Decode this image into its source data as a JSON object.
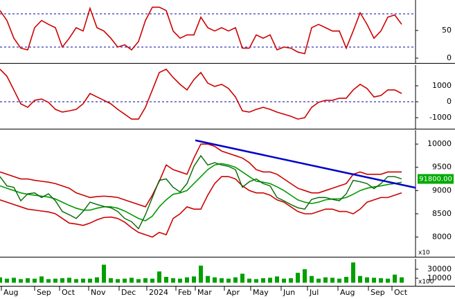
{
  "chart_data": [
    {
      "type": "line",
      "ylim": [
        -7.5,
        105
      ],
      "yticks": [
        0,
        50
      ],
      "levels": [
        20,
        80
      ],
      "level_color": "#0000aa",
      "xlim": [
        0,
        300
      ],
      "x": [
        0,
        5,
        10,
        15,
        20,
        25,
        30,
        35,
        40,
        45,
        50,
        55,
        60,
        65,
        70,
        75,
        80,
        85,
        90,
        95,
        100,
        105,
        110,
        115,
        120,
        125,
        130,
        135,
        140,
        145,
        150,
        155,
        160,
        165,
        170,
        175,
        180,
        185,
        190,
        195,
        200,
        205,
        210,
        215,
        220,
        225,
        230,
        235,
        240,
        245,
        250,
        255,
        260,
        265,
        270,
        275,
        280,
        285,
        290
      ],
      "series": [
        {
          "color": "#cc0000",
          "values": [
            86,
            68,
            36,
            18,
            15,
            55,
            68,
            61,
            55,
            20,
            36,
            55,
            49,
            90,
            55,
            49,
            36,
            20,
            24,
            15,
            30,
            68,
            92,
            92,
            86,
            49,
            36,
            42,
            42,
            74,
            55,
            49,
            55,
            49,
            55,
            18,
            18,
            42,
            36,
            42,
            15,
            20,
            18,
            11,
            8,
            55,
            61,
            55,
            49,
            49,
            18,
            49,
            82,
            61,
            36,
            49,
            74,
            78,
            61
          ]
        }
      ]
    },
    {
      "type": "line",
      "ylim": [
        -1650,
        2300
      ],
      "yticks": [
        -1000,
        0,
        1000
      ],
      "levels": [
        0
      ],
      "level_color": "#0000aa",
      "xlim": [
        0,
        300
      ],
      "x": [
        0,
        5,
        10,
        15,
        20,
        25,
        30,
        35,
        40,
        45,
        50,
        55,
        60,
        65,
        70,
        75,
        80,
        85,
        90,
        95,
        100,
        105,
        110,
        115,
        120,
        125,
        130,
        135,
        140,
        145,
        150,
        155,
        160,
        165,
        170,
        175,
        180,
        185,
        190,
        195,
        200,
        205,
        210,
        215,
        220,
        225,
        230,
        235,
        240,
        245,
        250,
        255,
        260,
        265,
        270,
        275,
        280,
        285,
        290
      ],
      "series": [
        {
          "color": "#cc0000",
          "values": [
            2040,
            1600,
            740,
            -130,
            -350,
            90,
            170,
            -40,
            -480,
            -650,
            -570,
            -480,
            -130,
            520,
            300,
            90,
            -130,
            -480,
            -780,
            -1090,
            -1090,
            -350,
            740,
            1830,
            2040,
            1520,
            1090,
            740,
            1390,
            1830,
            1170,
            960,
            1090,
            830,
            300,
            -570,
            -650,
            -480,
            -350,
            -480,
            -650,
            -780,
            -910,
            -1090,
            -1000,
            -350,
            -40,
            90,
            90,
            220,
            220,
            740,
            1090,
            830,
            300,
            390,
            740,
            740,
            520
          ]
        }
      ]
    },
    {
      "type": "line",
      "ylim": [
        7590,
        10300
      ],
      "yticks": [
        8000,
        8500,
        9000,
        9500,
        10000
      ],
      "xlim": [
        0,
        300
      ],
      "axis_unit": "x10",
      "last_price_label": "91800.00",
      "x": [
        0,
        5,
        10,
        15,
        20,
        25,
        30,
        35,
        40,
        45,
        50,
        55,
        60,
        65,
        70,
        75,
        80,
        85,
        90,
        95,
        100,
        105,
        110,
        115,
        120,
        125,
        130,
        135,
        140,
        145,
        150,
        155,
        160,
        165,
        170,
        175,
        180,
        185,
        190,
        195,
        200,
        205,
        210,
        215,
        220,
        225,
        230,
        235,
        240,
        245,
        250,
        255,
        260,
        265,
        270,
        275,
        280,
        285,
        290
      ],
      "series": [
        {
          "color": "#cc0000",
          "values": [
            9400,
            9350,
            9300,
            9250,
            9250,
            9220,
            9200,
            9180,
            9150,
            9100,
            9050,
            8950,
            8900,
            8850,
            8870,
            8880,
            8870,
            8850,
            8800,
            8750,
            8700,
            8650,
            8900,
            9200,
            9550,
            9450,
            9400,
            9350,
            9700,
            10000,
            10000,
            9950,
            9850,
            9800,
            9750,
            9700,
            9600,
            9450,
            9400,
            9400,
            9350,
            9250,
            9150,
            9050,
            9000,
            8950,
            8950,
            9000,
            9050,
            9100,
            9150,
            9350,
            9400,
            9350,
            9350,
            9350,
            9400,
            9400,
            9400
          ]
        },
        {
          "color": "#cc0000",
          "values": [
            8800,
            8750,
            8700,
            8650,
            8600,
            8580,
            8560,
            8540,
            8500,
            8400,
            8300,
            8280,
            8250,
            8300,
            8370,
            8420,
            8430,
            8400,
            8320,
            8200,
            8100,
            8050,
            8000,
            8100,
            8050,
            8400,
            8500,
            8650,
            8600,
            8600,
            8900,
            9150,
            9300,
            9300,
            9250,
            9100,
            9000,
            8950,
            8950,
            8900,
            8800,
            8750,
            8650,
            8550,
            8500,
            8500,
            8550,
            8600,
            8600,
            8550,
            8550,
            8500,
            8600,
            8750,
            8800,
            8850,
            8850,
            8900,
            8950
          ]
        },
        {
          "color": "#009900",
          "values": [
            9100,
            9050,
            9000,
            8950,
            8920,
            8900,
            8880,
            8860,
            8820,
            8750,
            8680,
            8620,
            8580,
            8580,
            8620,
            8650,
            8650,
            8620,
            8560,
            8480,
            8400,
            8350,
            8450,
            8650,
            8800,
            8920,
            8950,
            9000,
            9150,
            9300,
            9450,
            9550,
            9580,
            9550,
            9500,
            9400,
            9300,
            9200,
            9180,
            9150,
            9080,
            9000,
            8900,
            8800,
            8750,
            8720,
            8750,
            8800,
            8820,
            8820,
            8850,
            8920,
            9000,
            9050,
            9080,
            9100,
            9130,
            9150,
            9180
          ]
        },
        {
          "color": "#006600",
          "values": [
            9300,
            9100,
            9070,
            8780,
            8930,
            8950,
            8850,
            8930,
            8780,
            8550,
            8480,
            8400,
            8550,
            8750,
            8700,
            8660,
            8630,
            8550,
            8400,
            8330,
            8180,
            8480,
            8850,
            9220,
            9250,
            9070,
            8970,
            9150,
            9520,
            9750,
            9550,
            9600,
            9550,
            9520,
            9450,
            9070,
            9190,
            9250,
            9150,
            9100,
            8850,
            8780,
            8700,
            8630,
            8600,
            8810,
            8850,
            8850,
            8810,
            8780,
            8930,
            9220,
            9190,
            9150,
            9040,
            9150,
            9300,
            9300,
            9250
          ]
        }
      ],
      "trendline": {
        "color": "#0000cc",
        "x": [
          141,
          300
        ],
        "values": [
          10080,
          9060
        ]
      }
    },
    {
      "type": "bar",
      "ylim": [
        -5400,
        53000
      ],
      "yticks": [
        10000,
        30000
      ],
      "xlim": [
        0,
        300
      ],
      "axis_unit": "x100",
      "color": "#00a000",
      "x": [
        0,
        5,
        10,
        15,
        20,
        25,
        30,
        35,
        40,
        45,
        50,
        55,
        60,
        65,
        70,
        75,
        80,
        85,
        90,
        95,
        100,
        105,
        110,
        115,
        120,
        125,
        130,
        135,
        140,
        145,
        150,
        155,
        160,
        165,
        170,
        175,
        180,
        185,
        190,
        195,
        200,
        205,
        210,
        215,
        220,
        225,
        230,
        235,
        240,
        245,
        250,
        255,
        260,
        265,
        270,
        275,
        280,
        285,
        290
      ],
      "values": [
        12000,
        9000,
        11000,
        8000,
        10000,
        9000,
        14000,
        8000,
        9000,
        10000,
        11000,
        8000,
        9000,
        9000,
        12000,
        40000,
        10000,
        8000,
        9000,
        11000,
        8000,
        10000,
        9000,
        25000,
        13000,
        10000,
        9000,
        12000,
        14000,
        38000,
        15000,
        12000,
        10000,
        9000,
        12000,
        20000,
        9000,
        8000,
        10000,
        11000,
        14000,
        9000,
        10000,
        22000,
        30000,
        15000,
        9000,
        12000,
        11000,
        9000,
        13000,
        45000,
        15000,
        12000,
        11000,
        10000,
        9000,
        18000,
        12000
      ],
      "xticks": [
        {
          "value": 1,
          "label": "Aug"
        },
        {
          "value": 25,
          "label": "Sep"
        },
        {
          "value": 43,
          "label": "Oct"
        },
        {
          "value": 64,
          "label": "Nov"
        },
        {
          "value": 86,
          "label": "Dec"
        },
        {
          "value": 106,
          "label": "2024"
        },
        {
          "value": 127,
          "label": "Feb"
        },
        {
          "value": 141,
          "label": "Mar"
        },
        {
          "value": 162,
          "label": "Apr"
        },
        {
          "value": 181,
          "label": "May"
        },
        {
          "value": 203,
          "label": "Jun"
        },
        {
          "value": 222,
          "label": "Jul"
        },
        {
          "value": 244,
          "label": "Aug"
        },
        {
          "value": 266,
          "label": "Sep"
        },
        {
          "value": 283,
          "label": "Oct"
        }
      ]
    }
  ]
}
